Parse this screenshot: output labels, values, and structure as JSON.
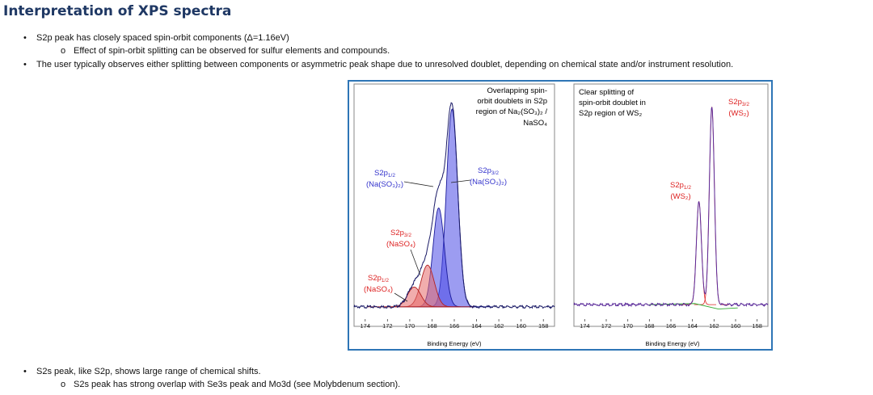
{
  "title": "Interpretation of XPS spectra",
  "bullets_top": [
    {
      "text": "S2p peak has closely spaced spin-orbit components (Δ=1.16eV)",
      "marker": "•"
    },
    {
      "text": "Effect of spin-orbit splitting can be observed for sulfur elements and compounds.",
      "marker": "o"
    },
    {
      "text": "The user typically observes either splitting between components or asymmetric peak shape due to unresolved doublet, depending on chemical state and/or instrument resolution.",
      "marker": "•"
    }
  ],
  "bullets_bottom": [
    {
      "text": "S2s peak, like S2p, shows large range of chemical shifts.",
      "marker": "•"
    },
    {
      "text": "S2s peak has strong overlap with Se3s peak and Mo3d (see Molybdenum section).",
      "marker": "o"
    }
  ],
  "colors": {
    "title": "#1f3864",
    "frame": "#2e75b6",
    "envelope": "#1a1a66",
    "blue_fill": "#4a4ae6",
    "red_fill": "#e66a6a",
    "blue_label": "#3333cc",
    "red_label": "#dd2222",
    "purple_line": "#5a2a99",
    "green_line": "#33aa33"
  },
  "chart_data": [
    {
      "type": "line",
      "panel": "left",
      "title_lines": [
        "Overlapping spin-",
        "orbit doublets in S2p",
        "region of Na₂(SO₃)₂ /",
        "NaSO₄"
      ],
      "xlabel": "Binding Energy (eV)",
      "xlim": [
        175,
        157
      ],
      "xticks": [
        174,
        172,
        170,
        168,
        166,
        164,
        162,
        160,
        158
      ],
      "ylim": [
        0,
        1
      ],
      "components": [
        {
          "name": "S2p3/2 (Na(SO3)2)",
          "center": 166.2,
          "fwhm": 1.2,
          "amp": 0.9,
          "fill": "blue"
        },
        {
          "name": "S2p1/2 (Na(SO3)2)",
          "center": 167.4,
          "fwhm": 1.2,
          "amp": 0.45,
          "fill": "blue"
        },
        {
          "name": "S2p3/2 (NaSO4)",
          "center": 168.4,
          "fwhm": 1.4,
          "amp": 0.19,
          "fill": "red"
        },
        {
          "name": "S2p1/2 (NaSO4)",
          "center": 169.6,
          "fwhm": 1.4,
          "amp": 0.09,
          "fill": "red"
        }
      ],
      "baseline": 0.03,
      "labels": [
        {
          "main": "S2p",
          "sub": "1/2",
          "chem": "(Na(SO₃)₂)",
          "color": "blue"
        },
        {
          "main": "S2p",
          "sub": "3/2",
          "chem": "(Na(SO₃)₂)",
          "color": "blue"
        },
        {
          "main": "S2p",
          "sub": "3/2",
          "chem": "(NaSO₄)",
          "color": "red"
        },
        {
          "main": "S2p",
          "sub": "1/2",
          "chem": "(NaSO₄)",
          "color": "red"
        }
      ]
    },
    {
      "type": "line",
      "panel": "right",
      "title_lines": [
        "Clear splitting of",
        "spin-orbit doublet in",
        "S2p region of WS₂"
      ],
      "xlabel": "Binding Energy (eV)",
      "xlim": [
        175,
        157
      ],
      "xticks": [
        174,
        172,
        170,
        168,
        166,
        164,
        162,
        160,
        158
      ],
      "ylim": [
        0,
        1
      ],
      "components": [
        {
          "name": "S2p3/2 (WS2)",
          "center": 162.2,
          "fwhm": 0.55,
          "amp": 0.9
        },
        {
          "name": "S2p1/2 (WS2)",
          "center": 163.4,
          "fwhm": 0.55,
          "amp": 0.47
        }
      ],
      "baseline": 0.04,
      "labels": [
        {
          "main": "S2p",
          "sub": "3/2",
          "chem": "(WS₂)",
          "color": "red"
        },
        {
          "main": "S2p",
          "sub": "1/2",
          "chem": "(WS₂)",
          "color": "red"
        }
      ]
    }
  ]
}
